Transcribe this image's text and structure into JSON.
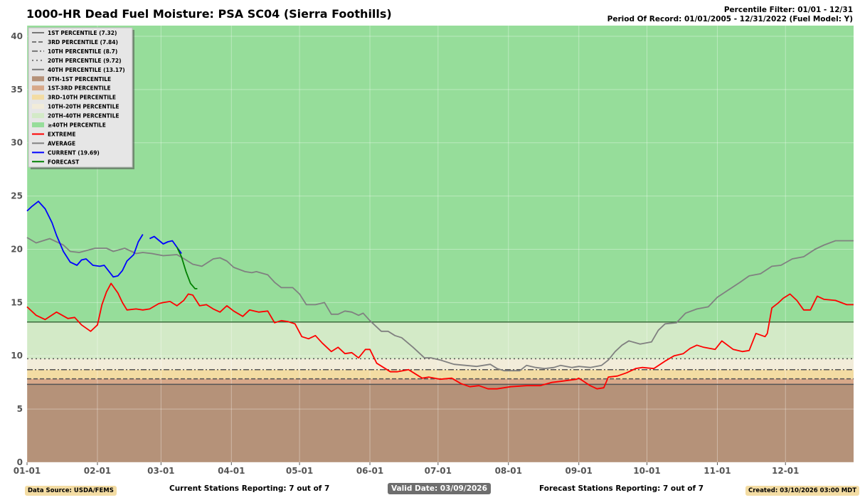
{
  "header": {
    "title": "1000-HR Dead Fuel Moisture: PSA SC04 (Sierra Foothills)",
    "percentile_filter": "Percentile Filter: 01/01 - 12/31",
    "period_of_record": "Period Of Record: 01/01/2005 - 12/31/2022 (Fuel Model: Y)"
  },
  "footer": {
    "data_source": "Data Source: USDA/FEMS",
    "current_stations": "Current Stations Reporting: 7 out of 7",
    "valid_date": "Valid Date: 03/09/2026",
    "forecast_stations": "Forecast Stations Reporting: 7 out of 7",
    "created": "Created: 03/10/2026 03:00 MDT"
  },
  "chart_data": {
    "type": "line",
    "title": "1000-HR Dead Fuel Moisture: PSA SC04 (Sierra Foothills)",
    "xlabel": "",
    "ylabel": "",
    "xlim": [
      0,
      364
    ],
    "ylim": [
      0,
      41
    ],
    "x_ticks": [
      {
        "day": 0,
        "label": "01-01"
      },
      {
        "day": 31,
        "label": "02-01"
      },
      {
        "day": 59,
        "label": "03-01"
      },
      {
        "day": 90,
        "label": "04-01"
      },
      {
        "day": 120,
        "label": "05-01"
      },
      {
        "day": 151,
        "label": "06-01"
      },
      {
        "day": 181,
        "label": "07-01"
      },
      {
        "day": 212,
        "label": "08-01"
      },
      {
        "day": 243,
        "label": "09-01"
      },
      {
        "day": 273,
        "label": "10-01"
      },
      {
        "day": 304,
        "label": "11-01"
      },
      {
        "day": 334,
        "label": "12-01"
      }
    ],
    "y_ticks": [
      0,
      5,
      10,
      15,
      20,
      25,
      30,
      35,
      40
    ],
    "grid": true,
    "legend_position": "top-left",
    "percentiles": [
      {
        "label": "1ST PERCENTILE (7.32)",
        "value": 7.32,
        "dash": "solid"
      },
      {
        "label": "3RD PERCENTILE (7.84)",
        "value": 7.84,
        "dash": "dashed"
      },
      {
        "label": "10TH PERCENTILE (8.7)",
        "value": 8.7,
        "dash": "dashdot"
      },
      {
        "label": "20TH PERCENTILE (9.72)",
        "value": 9.72,
        "dash": "dotted"
      },
      {
        "label": "40TH PERCENTILE (13.17)",
        "value": 13.17,
        "dash": "solid"
      }
    ],
    "bands": [
      {
        "label": "0TH-1ST PERCENTILE",
        "from": 0,
        "to": 7.32,
        "color": "#b59279"
      },
      {
        "label": "1ST-3RD PERCENTILE",
        "from": 7.32,
        "to": 7.84,
        "color": "#d8a98a"
      },
      {
        "label": "3RD-10TH PERCENTILE",
        "from": 7.84,
        "to": 8.7,
        "color": "#f3dca3"
      },
      {
        "label": "10TH-20TH PERCENTILE",
        "from": 8.7,
        "to": 9.72,
        "color": "#f2ecd9"
      },
      {
        "label": "20TH-40TH PERCENTILE",
        "from": 9.72,
        "to": 13.17,
        "color": "#d3eac7"
      },
      {
        "label": "≥40TH PERCENTILE",
        "from": 13.17,
        "to": 41,
        "color": "#96dd9a"
      }
    ],
    "series": [
      {
        "name": "EXTREME",
        "color": "#ff0000",
        "points": [
          [
            0,
            14.6
          ],
          [
            4,
            13.8
          ],
          [
            8,
            13.4
          ],
          [
            13,
            14.1
          ],
          [
            18,
            13.5
          ],
          [
            21,
            13.6
          ],
          [
            24,
            12.9
          ],
          [
            28,
            12.3
          ],
          [
            31,
            12.9
          ],
          [
            33,
            14.8
          ],
          [
            35,
            16.0
          ],
          [
            37,
            16.8
          ],
          [
            40,
            15.9
          ],
          [
            42,
            15.0
          ],
          [
            44,
            14.3
          ],
          [
            48,
            14.4
          ],
          [
            51,
            14.3
          ],
          [
            54,
            14.4
          ],
          [
            58,
            14.9
          ],
          [
            60,
            15.0
          ],
          [
            63,
            15.1
          ],
          [
            66,
            14.7
          ],
          [
            69,
            15.2
          ],
          [
            71,
            15.8
          ],
          [
            73,
            15.7
          ],
          [
            76,
            14.7
          ],
          [
            79,
            14.8
          ],
          [
            82,
            14.4
          ],
          [
            85,
            14.1
          ],
          [
            88,
            14.7
          ],
          [
            91,
            14.2
          ],
          [
            95,
            13.7
          ],
          [
            98,
            14.3
          ],
          [
            102,
            14.1
          ],
          [
            106,
            14.2
          ],
          [
            109,
            13.1
          ],
          [
            112,
            13.3
          ],
          [
            115,
            13.2
          ],
          [
            118,
            13.0
          ],
          [
            121,
            11.8
          ],
          [
            124,
            11.6
          ],
          [
            127,
            11.9
          ],
          [
            130,
            11.2
          ],
          [
            134,
            10.4
          ],
          [
            137,
            10.8
          ],
          [
            140,
            10.2
          ],
          [
            143,
            10.3
          ],
          [
            146,
            9.8
          ],
          [
            149,
            10.6
          ],
          [
            151,
            10.6
          ],
          [
            154,
            9.3
          ],
          [
            157,
            8.9
          ],
          [
            160,
            8.5
          ],
          [
            163,
            8.5
          ],
          [
            168,
            8.7
          ],
          [
            171,
            8.3
          ],
          [
            174,
            7.9
          ],
          [
            177,
            8.0
          ],
          [
            182,
            7.8
          ],
          [
            187,
            7.9
          ],
          [
            191,
            7.4
          ],
          [
            195,
            7.1
          ],
          [
            199,
            7.2
          ],
          [
            203,
            6.9
          ],
          [
            207,
            6.9
          ],
          [
            213,
            7.1
          ],
          [
            220,
            7.2
          ],
          [
            226,
            7.2
          ],
          [
            231,
            7.5
          ],
          [
            235,
            7.6
          ],
          [
            242,
            7.8
          ],
          [
            243,
            7.9
          ],
          [
            248,
            7.2
          ],
          [
            251,
            6.9
          ],
          [
            254,
            7.0
          ],
          [
            256,
            8.0
          ],
          [
            260,
            8.1
          ],
          [
            264,
            8.4
          ],
          [
            268,
            8.8
          ],
          [
            271,
            8.9
          ],
          [
            276,
            8.8
          ],
          [
            281,
            9.5
          ],
          [
            285,
            10.0
          ],
          [
            289,
            10.2
          ],
          [
            292,
            10.7
          ],
          [
            295,
            11.0
          ],
          [
            298,
            10.8
          ],
          [
            303,
            10.6
          ],
          [
            306,
            11.4
          ],
          [
            311,
            10.6
          ],
          [
            315,
            10.4
          ],
          [
            318,
            10.5
          ],
          [
            321,
            12.1
          ],
          [
            325,
            11.8
          ],
          [
            326,
            12.1
          ],
          [
            328,
            14.5
          ],
          [
            331,
            15.0
          ],
          [
            333,
            15.4
          ],
          [
            336,
            15.8
          ],
          [
            339,
            15.2
          ],
          [
            342,
            14.3
          ],
          [
            345,
            14.3
          ],
          [
            348,
            15.6
          ],
          [
            351,
            15.3
          ],
          [
            356,
            15.2
          ],
          [
            361,
            14.8
          ],
          [
            364,
            14.8
          ]
        ]
      },
      {
        "name": "AVERAGE",
        "color": "#808080",
        "points": [
          [
            0,
            21.1
          ],
          [
            4,
            20.6
          ],
          [
            10,
            21.0
          ],
          [
            16,
            20.4
          ],
          [
            19,
            19.8
          ],
          [
            23,
            19.7
          ],
          [
            30,
            20.1
          ],
          [
            35,
            20.1
          ],
          [
            38,
            19.8
          ],
          [
            43,
            20.1
          ],
          [
            48,
            19.6
          ],
          [
            51,
            19.7
          ],
          [
            55,
            19.6
          ],
          [
            60,
            19.4
          ],
          [
            66,
            19.5
          ],
          [
            70,
            19.0
          ],
          [
            73,
            18.6
          ],
          [
            77,
            18.4
          ],
          [
            82,
            19.1
          ],
          [
            85,
            19.2
          ],
          [
            88,
            18.9
          ],
          [
            91,
            18.3
          ],
          [
            96,
            17.9
          ],
          [
            99,
            17.8
          ],
          [
            101,
            17.9
          ],
          [
            106,
            17.6
          ],
          [
            109,
            16.9
          ],
          [
            112,
            16.4
          ],
          [
            117,
            16.4
          ],
          [
            120,
            15.8
          ],
          [
            123,
            14.8
          ],
          [
            127,
            14.8
          ],
          [
            131,
            15.0
          ],
          [
            134,
            13.9
          ],
          [
            137,
            13.9
          ],
          [
            140,
            14.2
          ],
          [
            143,
            14.1
          ],
          [
            146,
            13.8
          ],
          [
            148,
            14.0
          ],
          [
            151,
            13.3
          ],
          [
            156,
            12.3
          ],
          [
            159,
            12.3
          ],
          [
            162,
            11.9
          ],
          [
            165,
            11.7
          ],
          [
            170,
            10.8
          ],
          [
            173,
            10.2
          ],
          [
            175,
            9.8
          ],
          [
            178,
            9.8
          ],
          [
            182,
            9.6
          ],
          [
            188,
            9.2
          ],
          [
            193,
            9.1
          ],
          [
            198,
            9.0
          ],
          [
            204,
            9.2
          ],
          [
            207,
            8.8
          ],
          [
            210,
            8.6
          ],
          [
            217,
            8.6
          ],
          [
            220,
            9.1
          ],
          [
            224,
            8.9
          ],
          [
            228,
            8.8
          ],
          [
            232,
            8.9
          ],
          [
            235,
            9.1
          ],
          [
            240,
            8.9
          ],
          [
            243,
            9.0
          ],
          [
            248,
            8.9
          ],
          [
            253,
            9.1
          ],
          [
            256,
            9.6
          ],
          [
            259,
            10.4
          ],
          [
            262,
            11.0
          ],
          [
            265,
            11.4
          ],
          [
            270,
            11.1
          ],
          [
            275,
            11.3
          ],
          [
            278,
            12.4
          ],
          [
            281,
            13.0
          ],
          [
            286,
            13.1
          ],
          [
            290,
            14.0
          ],
          [
            295,
            14.4
          ],
          [
            300,
            14.6
          ],
          [
            304,
            15.5
          ],
          [
            309,
            16.2
          ],
          [
            314,
            16.9
          ],
          [
            318,
            17.5
          ],
          [
            323,
            17.7
          ],
          [
            328,
            18.4
          ],
          [
            332,
            18.5
          ],
          [
            337,
            19.1
          ],
          [
            342,
            19.3
          ],
          [
            347,
            20.0
          ],
          [
            351,
            20.4
          ],
          [
            356,
            20.8
          ],
          [
            364,
            20.8
          ]
        ]
      },
      {
        "name": "CURRENT (19.69)",
        "color": "#0000ff",
        "points": [
          [
            0,
            23.6
          ],
          [
            2,
            24.0
          ],
          [
            5,
            24.5
          ],
          [
            8,
            23.8
          ],
          [
            11,
            22.5
          ],
          [
            13,
            21.3
          ],
          [
            16,
            19.8
          ],
          [
            19,
            18.8
          ],
          [
            22,
            18.5
          ],
          [
            24,
            19.0
          ],
          [
            26,
            19.1
          ],
          [
            29,
            18.5
          ],
          [
            32,
            18.4
          ],
          [
            34,
            18.5
          ],
          [
            38,
            17.4
          ],
          [
            40,
            17.5
          ],
          [
            42,
            18.0
          ],
          [
            44,
            18.9
          ],
          [
            47,
            19.5
          ],
          [
            49,
            20.7
          ],
          [
            51,
            21.4
          ],
          null,
          [
            54,
            21.0
          ],
          [
            56,
            21.2
          ],
          [
            60,
            20.5
          ],
          [
            62,
            20.7
          ],
          [
            64,
            20.8
          ],
          [
            66,
            20.2
          ],
          [
            68,
            19.6
          ]
        ]
      },
      {
        "name": "FORECAST",
        "color": "#008000",
        "points": [
          [
            66,
            20.2
          ],
          [
            68,
            19.3
          ],
          [
            70,
            17.9
          ],
          [
            72,
            16.8
          ],
          [
            74,
            16.3
          ],
          [
            75,
            16.3
          ]
        ]
      }
    ]
  }
}
